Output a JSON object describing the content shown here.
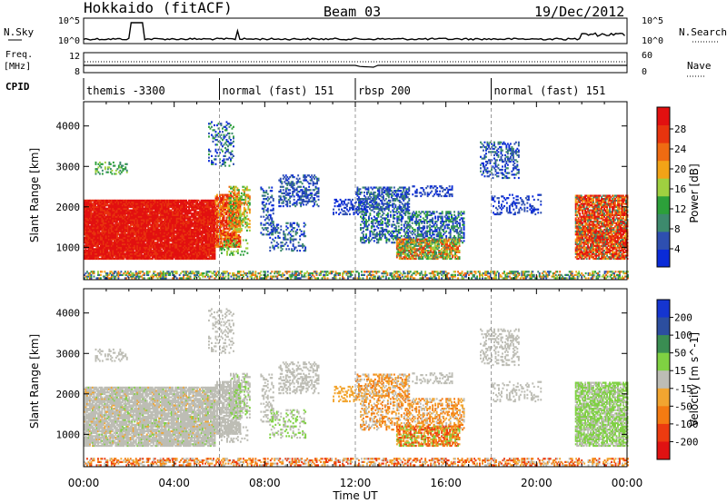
{
  "header": {
    "station": "Hokkaido (fitACF)",
    "beam": "Beam 03",
    "date": "19/Dec/2012"
  },
  "status_panels": {
    "nsky_label": "N.Sky",
    "nsearch_label": "N.Search",
    "freq_label_1": "Freq.",
    "freq_label_2": "[MHz]",
    "nave_label": "Nave",
    "cpid_label": "CPID",
    "noise_ticks": [
      "10^5",
      "10^0"
    ],
    "freq_ticks": [
      "12",
      "8"
    ],
    "nave_ticks": [
      "60",
      "0"
    ]
  },
  "cpid_segments": [
    {
      "label": "themis -3300",
      "start_hour": 0
    },
    {
      "label": "normal (fast) 151",
      "start_hour": 6
    },
    {
      "label": "rbsp 200",
      "start_hour": 12
    },
    {
      "label": "normal (fast) 151",
      "start_hour": 18
    }
  ],
  "colors": {
    "power_scale": [
      "#0a2bd8",
      "#2e4fb0",
      "#3d8a6d",
      "#2ca03a",
      "#9fd040",
      "#f2a317",
      "#ef6b12",
      "#e8340e",
      "#e21010"
    ],
    "velocity_scale": [
      "#1535d0",
      "#2c4e9f",
      "#3a8d52",
      "#7fd142",
      "#bdbdb5",
      "#f2a530",
      "#f47b12",
      "#ec3b10",
      "#e01212"
    ]
  },
  "chart_data": [
    {
      "type": "heatmap",
      "name": "power",
      "ylabel": "Slant Range [km]",
      "yticks": [
        "4000",
        "3000",
        "2000",
        "1000"
      ],
      "ylim": [
        200,
        4600
      ],
      "xlim_hours": [
        0,
        24
      ],
      "colorbar_label": "Power [dB]",
      "colorbar_ticks": [
        "28",
        "24",
        "20",
        "16",
        "12",
        "8",
        "4"
      ],
      "colorbar_range": [
        0,
        32
      ]
    },
    {
      "type": "heatmap",
      "name": "velocity",
      "ylabel": "Slant Range [km]",
      "yticks": [
        "4000",
        "3000",
        "2000",
        "1000"
      ],
      "ylim": [
        200,
        4600
      ],
      "xlim_hours": [
        0,
        24
      ],
      "colorbar_label": "Velocity [m s^-1]",
      "colorbar_ticks": [
        "200",
        "100",
        "50",
        "15",
        "-15",
        "-50",
        "-100",
        "-200"
      ]
    }
  ],
  "x_axis": {
    "label": "Time UT",
    "ticks": [
      "00:00",
      "04:00",
      "08:00",
      "12:00",
      "16:00",
      "20:00",
      "00:00"
    ]
  }
}
